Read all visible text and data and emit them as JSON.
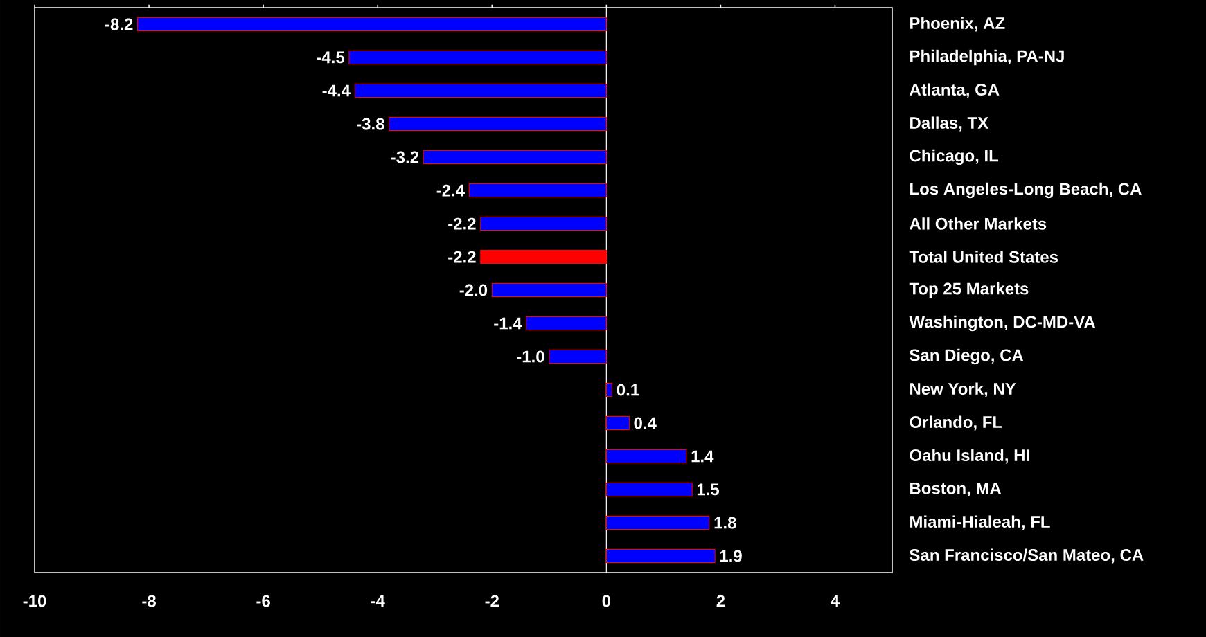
{
  "chart_data": {
    "type": "bar",
    "orientation": "horizontal",
    "categories": [
      "Phoenix, AZ",
      "Philadelphia, PA-NJ",
      "Atlanta, GA",
      "Dallas, TX",
      "Chicago, IL",
      "Los Angeles-Long Beach, CA",
      "All Other Markets",
      "Total United States",
      "Top 25 Markets",
      "Washington, DC-MD-VA",
      "San Diego, CA",
      "New York, NY",
      "Orlando, FL",
      "Oahu Island, HI",
      "Boston, MA",
      "Miami-Hialeah, FL",
      "San Francisco/San Mateo, CA"
    ],
    "values": [
      -8.2,
      -4.5,
      -4.4,
      -3.8,
      -3.2,
      -2.4,
      -2.2,
      -2.2,
      -2.0,
      -1.4,
      -1.0,
      0.1,
      0.4,
      1.4,
      1.5,
      1.8,
      1.9
    ],
    "value_labels": [
      "-8.2",
      "-4.5",
      "-4.4",
      "-3.8",
      "-3.2",
      "-2.4",
      "-2.2",
      "-2.2",
      "-2.0",
      "-1.4",
      "-1.0",
      "0.1",
      "0.4",
      "1.4",
      "1.5",
      "1.8",
      "1.9"
    ],
    "colors": [
      "#0000ff",
      "#0000ff",
      "#0000ff",
      "#0000ff",
      "#0000ff",
      "#0000ff",
      "#0000ff",
      "#ff0000",
      "#0000ff",
      "#0000ff",
      "#0000ff",
      "#0000ff",
      "#0000ff",
      "#0000ff",
      "#0000ff",
      "#0000ff",
      "#0000ff"
    ],
    "xlim": [
      -10,
      5
    ],
    "xticks": [
      -10,
      -8,
      -6,
      -4,
      -2,
      0,
      2,
      4
    ],
    "ref_lines": [
      {
        "axis": "x",
        "value": 0
      }
    ]
  }
}
